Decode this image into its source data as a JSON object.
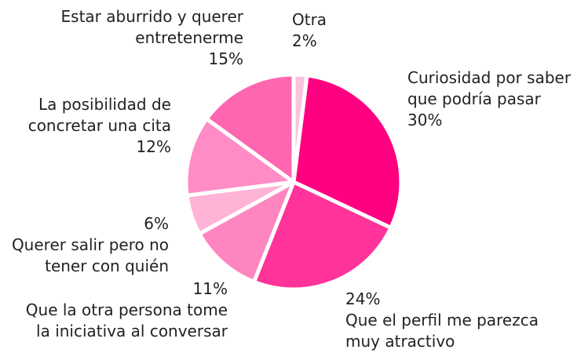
{
  "chart_data": {
    "type": "pie",
    "categories": [
      "Otra",
      "Curiosidad por saber que podría pasar",
      "Que el perfil me parezca muy atractivo",
      "Que la otra persona tome la iniciativa al conversar",
      "Querer salir pero no tener con quién",
      "La posibilidad de concretar una cita",
      "Estar aburrido y querer entretenerme"
    ],
    "values": [
      2,
      30,
      24,
      11,
      6,
      12,
      15
    ],
    "value_labels": [
      "2%",
      "30%",
      "24%",
      "11%",
      "6%",
      "12%",
      "15%"
    ],
    "colors": [
      "#f9c4dc",
      "#ff0080",
      "#ff3399",
      "#ff85c0",
      "#ffb3d6",
      "#ff8cc5",
      "#ff66b0"
    ]
  }
}
